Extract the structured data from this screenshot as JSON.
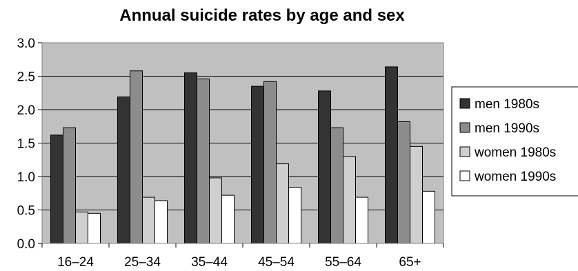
{
  "chart_data": {
    "type": "bar",
    "title": "Annual suicide rates by age and sex",
    "xlabel": "",
    "ylabel": "",
    "categories": [
      "16–24",
      "25–34",
      "35–44",
      "45–54",
      "55–64",
      "65+"
    ],
    "ylim": [
      0,
      3.0
    ],
    "yticks": [
      "0.0",
      "0.5",
      "1.0",
      "1.5",
      "2.0",
      "2.5",
      "3.0"
    ],
    "grid": true,
    "legend_position": "right",
    "series": [
      {
        "name": "men 1980s",
        "color": "#333333",
        "values": [
          1.62,
          2.19,
          2.55,
          2.35,
          2.28,
          2.64
        ]
      },
      {
        "name": "men 1990s",
        "color": "#8c8c8c",
        "values": [
          1.73,
          2.58,
          2.46,
          2.42,
          1.73,
          1.82
        ]
      },
      {
        "name": "women 1980s",
        "color": "#cfcfcf",
        "values": [
          0.47,
          0.69,
          0.98,
          1.19,
          1.3,
          1.45
        ]
      },
      {
        "name": "women 1990s",
        "color": "#ffffff",
        "values": [
          0.45,
          0.64,
          0.72,
          0.84,
          0.69,
          0.78
        ]
      }
    ],
    "plot_background": "#c0c0c0"
  }
}
